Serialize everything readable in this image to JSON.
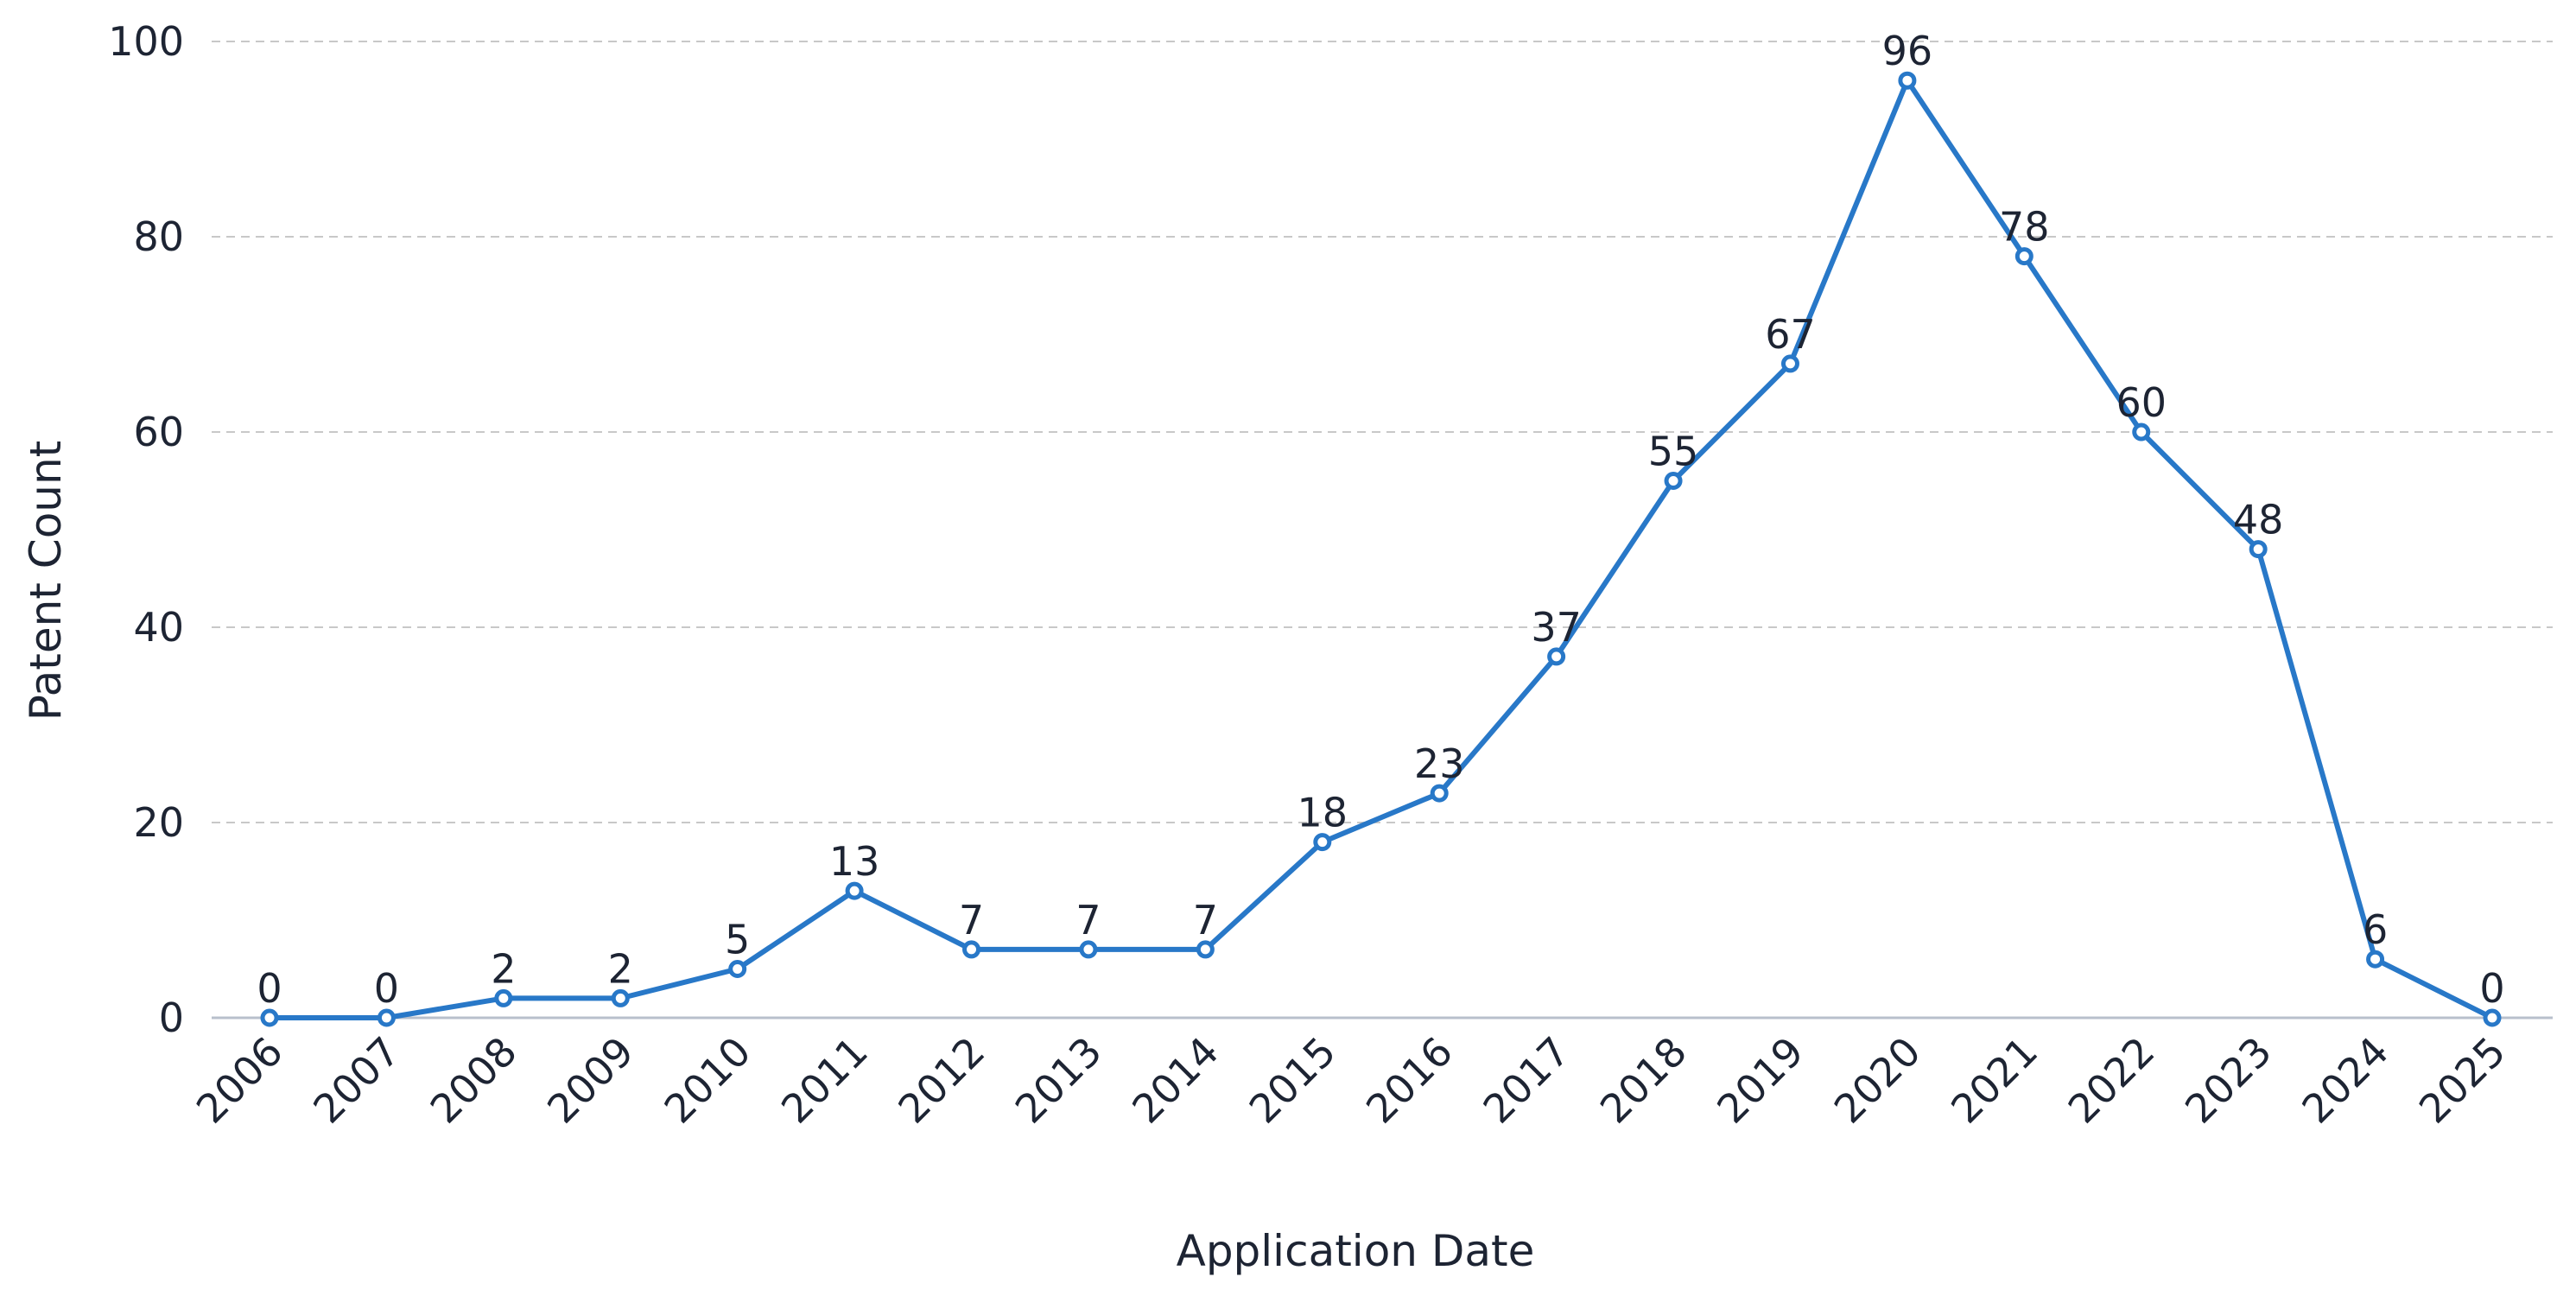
{
  "chart_data": {
    "type": "line",
    "title": "",
    "xlabel": "Application Date",
    "ylabel": "Patent Count",
    "categories": [
      "2006",
      "2007",
      "2008",
      "2009",
      "2010",
      "2011",
      "2012",
      "2013",
      "2014",
      "2015",
      "2016",
      "2017",
      "2018",
      "2019",
      "2020",
      "2021",
      "2022",
      "2023",
      "2024",
      "2025"
    ],
    "series": [
      {
        "values": [
          0,
          0,
          2,
          2,
          5,
          13,
          7,
          7,
          7,
          18,
          23,
          37,
          55,
          67,
          96,
          78,
          60,
          48,
          6,
          0
        ]
      }
    ],
    "ylim": [
      0,
      100
    ],
    "yticks": [
      0,
      20,
      40,
      60,
      80,
      100
    ],
    "grid": true,
    "legend": "none",
    "data_labels": true,
    "colors": {
      "line": "#2878c8",
      "grid": "#c8c8c8",
      "axis": "#b8c0cc",
      "text": "#1d2433"
    }
  }
}
